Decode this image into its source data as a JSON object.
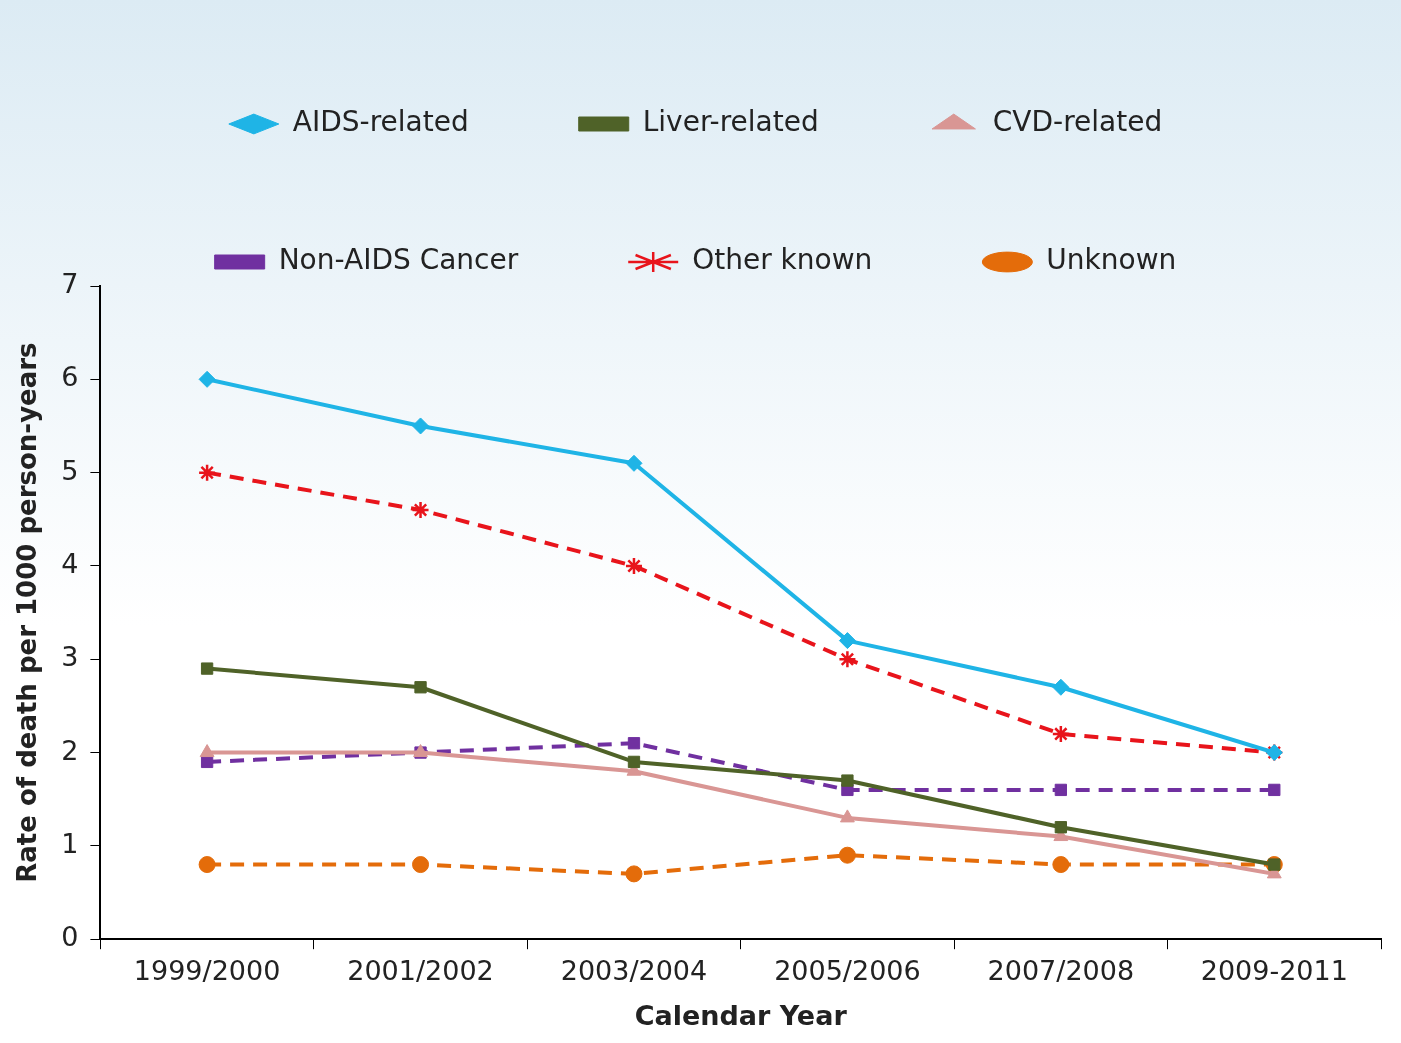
{
  "chart_data": {
    "type": "line",
    "xlabel": "Calendar Year",
    "ylabel": "Rate of death per 1000 person-years",
    "categories": [
      "1999/2000",
      "2001/2002",
      "2003/2004",
      "2005/2006",
      "2007/2008",
      "2009-2011"
    ],
    "ylim": [
      0,
      7
    ],
    "yticks": [
      0,
      1,
      2,
      3,
      4,
      5,
      6,
      7
    ],
    "legend": "top",
    "series": [
      {
        "name": "AIDS-related",
        "color": "#1fb4e6",
        "marker": "diamond",
        "line_style": "solid",
        "values": [
          6.0,
          5.5,
          5.1,
          3.2,
          2.7,
          2.0
        ]
      },
      {
        "name": "Liver-related",
        "color": "#4f6228",
        "marker": "square",
        "line_style": "solid",
        "values": [
          2.9,
          2.7,
          1.9,
          1.7,
          1.2,
          0.8
        ]
      },
      {
        "name": "CVD-related",
        "color": "#d99694",
        "marker": "triangle",
        "line_style": "solid",
        "values": [
          2.0,
          2.0,
          1.8,
          1.3,
          1.1,
          0.7
        ]
      },
      {
        "name": "Non-AIDS Cancer",
        "color": "#7030a0",
        "marker": "square",
        "line_style": "dashed",
        "values": [
          1.9,
          2.0,
          2.1,
          1.6,
          1.6,
          1.6
        ]
      },
      {
        "name": "Other known",
        "color": "#e8141b",
        "marker": "cross",
        "line_style": "dashed",
        "values": [
          5.0,
          4.6,
          4.0,
          3.0,
          2.2,
          2.0
        ]
      },
      {
        "name": "Unknown",
        "color": "#e46c0a",
        "marker": "circle",
        "line_style": "dashed",
        "values": [
          0.8,
          0.8,
          0.7,
          0.9,
          0.8,
          0.8
        ]
      }
    ]
  }
}
